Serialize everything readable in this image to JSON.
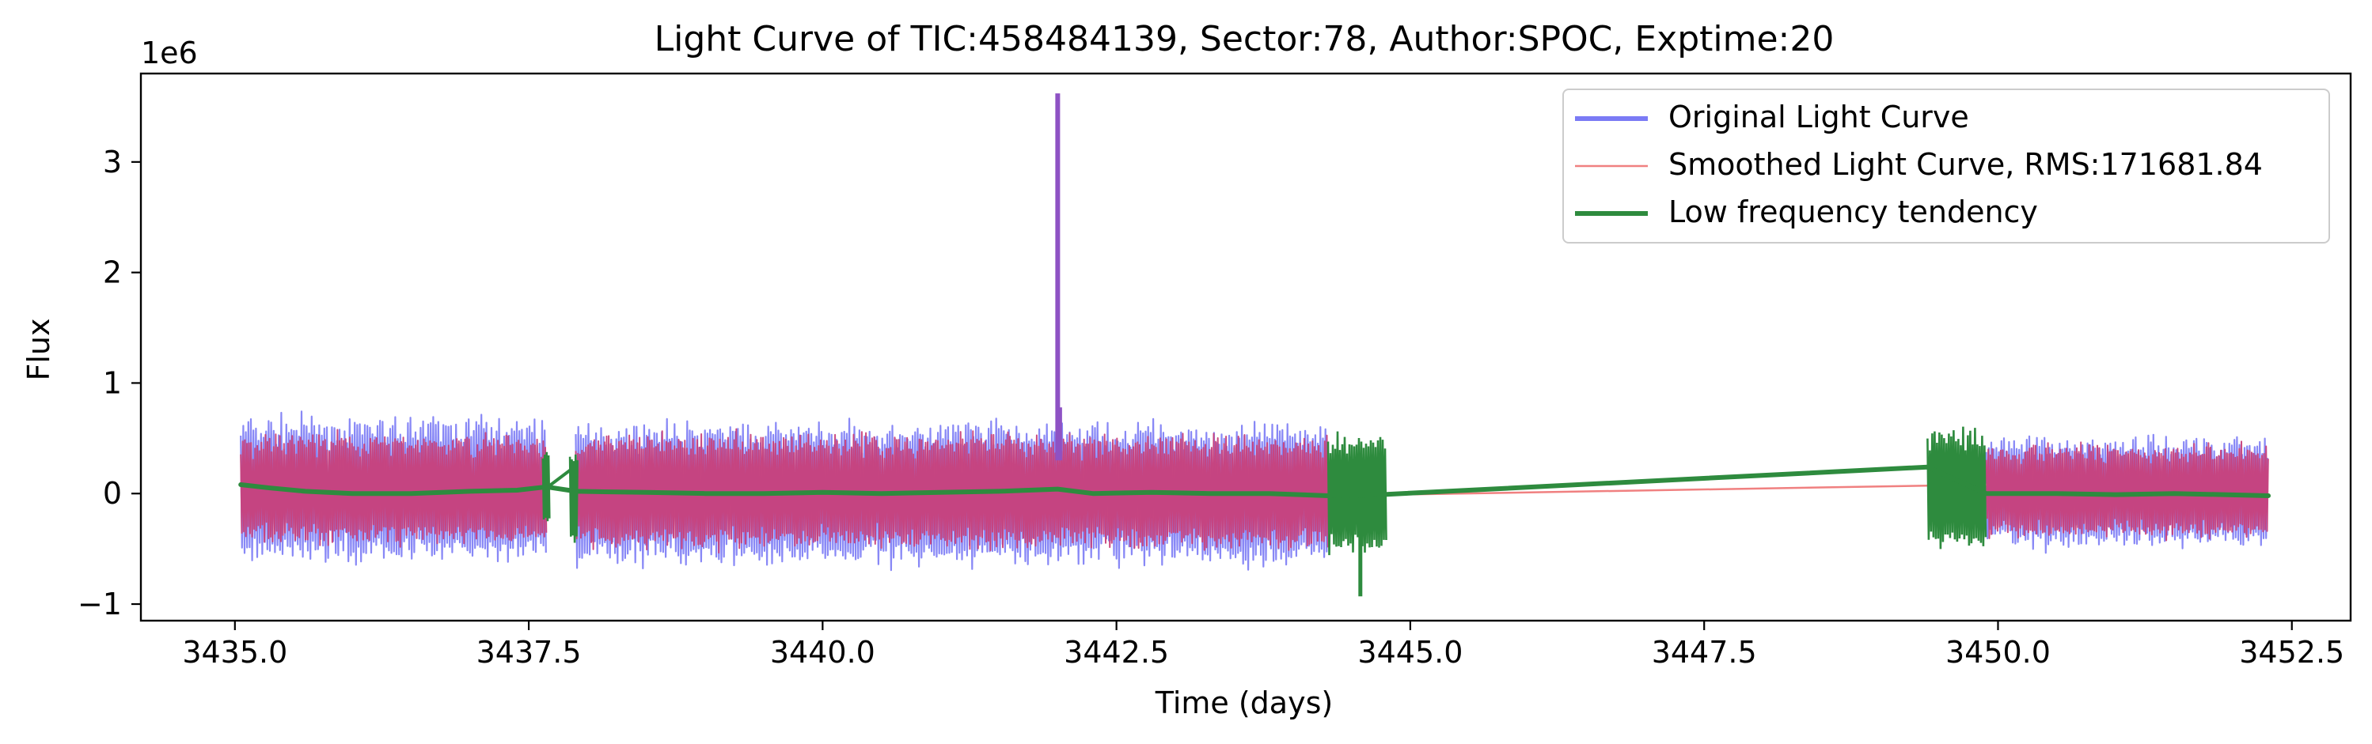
{
  "chart_data": {
    "type": "line",
    "title": "Light Curve of TIC:458484139, Sector:78, Author:SPOC, Exptime:20",
    "xlabel": "Time (days)",
    "ylabel": "Flux",
    "y_offset_label": "1e6",
    "xlim": [
      3434.2,
      3453.0
    ],
    "ylim": [
      -1.15,
      3.8
    ],
    "xticks": [
      3435.0,
      3437.5,
      3440.0,
      3442.5,
      3445.0,
      3447.5,
      3450.0,
      3452.5
    ],
    "xtick_labels": [
      "3435.0",
      "3437.5",
      "3440.0",
      "3442.5",
      "3445.0",
      "3447.5",
      "3450.0",
      "3452.5"
    ],
    "yticks": [
      -1,
      0,
      1,
      2,
      3
    ],
    "ytick_labels": [
      "−1",
      "0",
      "1",
      "2",
      "3"
    ],
    "grid": false,
    "legend_position": "top-right",
    "series": [
      {
        "name": "Original Light Curve",
        "color": "#7b7bf5",
        "segments": [
          {
            "x_start": 3435.05,
            "x_end": 3437.65,
            "band_low": -0.68,
            "band_high": 0.78
          },
          {
            "x_start": 3437.9,
            "x_end": 3444.3,
            "band_low": -0.72,
            "band_high": 0.72
          },
          {
            "x_start": 3449.9,
            "x_end": 3452.3,
            "band_low": -0.55,
            "band_high": 0.58
          }
        ],
        "spike": {
          "x": 3442.0,
          "y": 3.62
        }
      },
      {
        "name": "Smoothed Light Curve, RMS:171681.84",
        "color": "#f08080",
        "segments": [
          {
            "x_start": 3435.05,
            "x_end": 3437.65,
            "band_low": -0.5,
            "band_high": 0.6
          },
          {
            "x_start": 3437.9,
            "x_end": 3444.3,
            "band_low": -0.55,
            "band_high": 0.6
          },
          {
            "x_start": 3449.9,
            "x_end": 3452.3,
            "band_low": -0.45,
            "band_high": 0.5
          }
        ],
        "gap_line": [
          [
            3444.3,
            -0.02
          ],
          [
            3449.9,
            0.08
          ]
        ]
      },
      {
        "name": "Low frequency tendency",
        "color": "#2e8b3e",
        "trend": [
          [
            3435.05,
            0.08
          ],
          [
            3435.3,
            0.05
          ],
          [
            3435.6,
            0.02
          ],
          [
            3436.0,
            0.0
          ],
          [
            3436.5,
            0.0
          ],
          [
            3437.0,
            0.02
          ],
          [
            3437.4,
            0.03
          ],
          [
            3437.65,
            0.06
          ],
          [
            3437.9,
            0.02
          ],
          [
            3438.5,
            0.01
          ],
          [
            3439.0,
            0.0
          ],
          [
            3439.5,
            0.0
          ],
          [
            3440.0,
            0.01
          ],
          [
            3440.5,
            0.0
          ],
          [
            3441.0,
            0.01
          ],
          [
            3441.5,
            0.02
          ],
          [
            3442.0,
            0.04
          ],
          [
            3442.3,
            0.0
          ],
          [
            3442.8,
            0.01
          ],
          [
            3443.3,
            0.0
          ],
          [
            3443.8,
            0.0
          ],
          [
            3444.3,
            -0.02
          ],
          [
            3444.75,
            -0.01
          ],
          [
            3449.4,
            0.24
          ],
          [
            3449.9,
            0.0
          ],
          [
            3450.5,
            0.0
          ],
          [
            3451.0,
            -0.01
          ],
          [
            3451.5,
            0.0
          ],
          [
            3452.3,
            -0.02
          ]
        ],
        "dense_blocks": [
          {
            "x_start": 3437.62,
            "x_end": 3437.68,
            "y_low": -0.3,
            "y_high": 0.52
          },
          {
            "x_start": 3437.85,
            "x_end": 3437.92,
            "y_low": -0.55,
            "y_high": 0.42
          },
          {
            "x_start": 3444.3,
            "x_end": 3444.8,
            "y_low": -0.6,
            "y_high": 0.6,
            "min_y": -0.93
          },
          {
            "x_start": 3449.4,
            "x_end": 3449.9,
            "y_low": -0.55,
            "y_high": 0.68
          }
        ]
      }
    ]
  }
}
